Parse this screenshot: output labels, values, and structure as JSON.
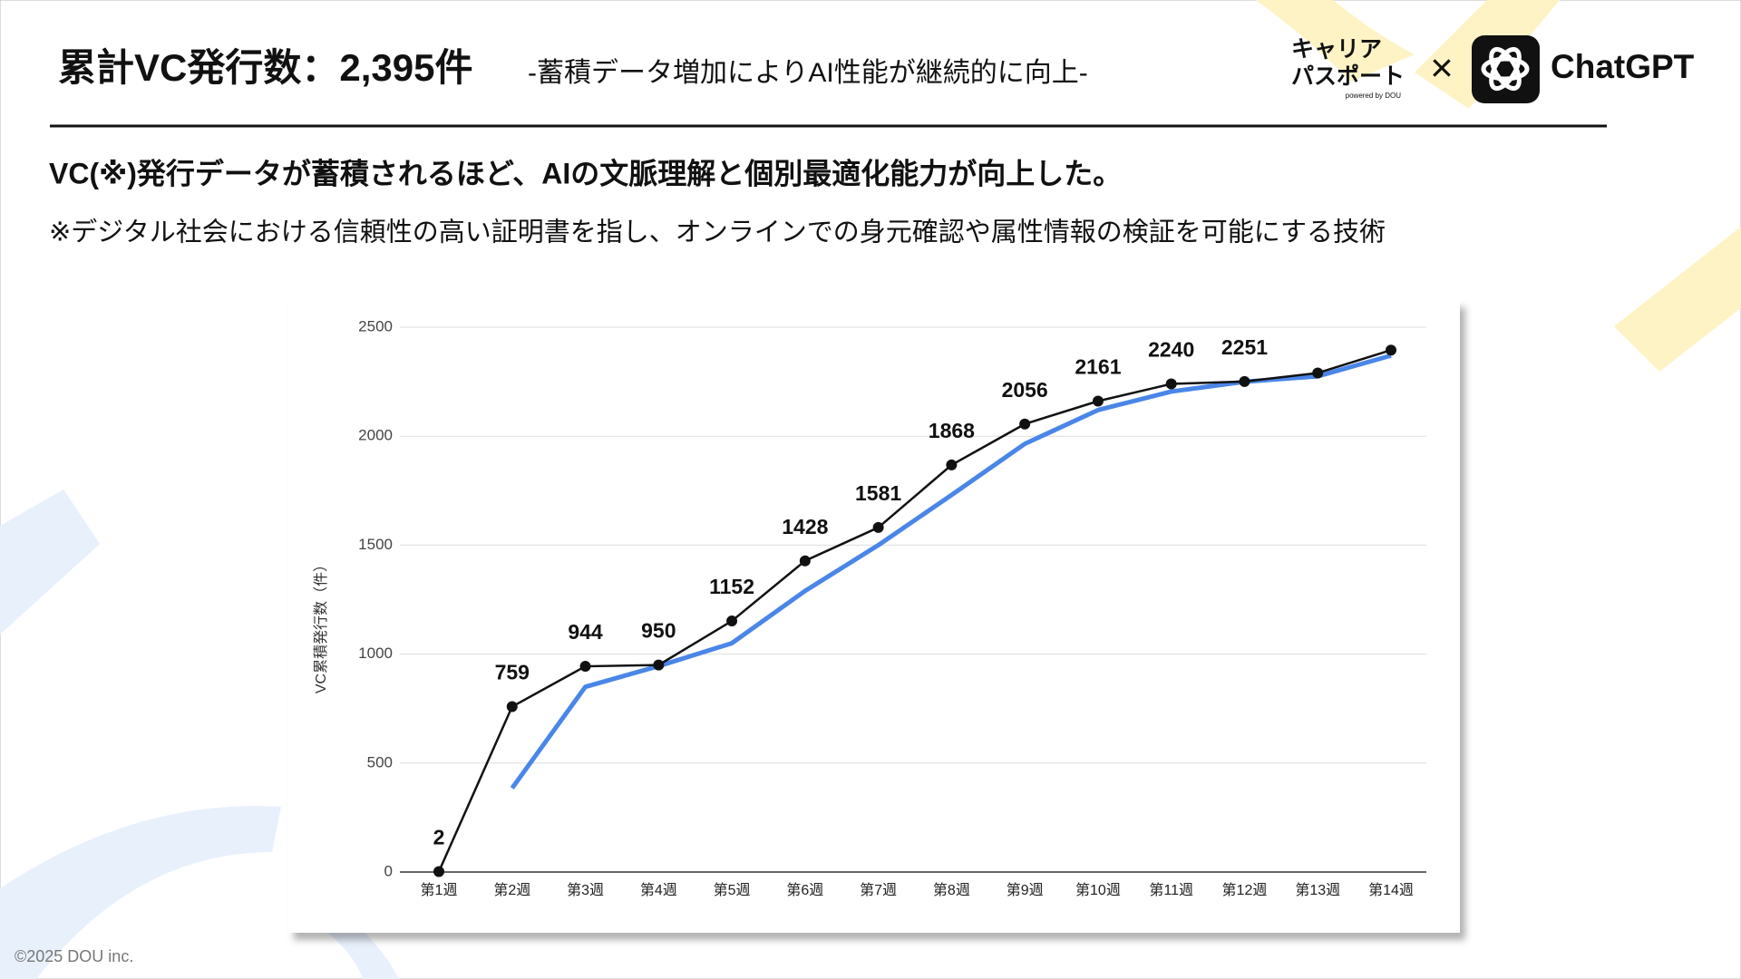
{
  "header": {
    "title": "累計VC発行数：2,395件",
    "subtitle": "-蓄積データ増加によりAI性能が継続的に向上-",
    "logo_text_1": "キャリア",
    "logo_text_2": "パスポート",
    "logo_powered": "powered by DOU",
    "cross": "×",
    "partner": "ChatGPT"
  },
  "lead": "VC(※)発行データが蓄積されるほど、AIの文脈理解と個別最適化能力が向上した。",
  "note": "※デジタル社会における信頼性の高い証明書を指し、オンラインでの身元確認や属性情報の検証を可能にする技術",
  "footer": "©2025 DOU inc.",
  "chart_data": {
    "type": "line",
    "ylabel": "VC累積発行数（件）",
    "categories": [
      "第1週",
      "第2週",
      "第3週",
      "第4週",
      "第5週",
      "第6週",
      "第7週",
      "第8週",
      "第9週",
      "第10週",
      "第11週",
      "第12週",
      "第13週",
      "第14週"
    ],
    "series": [
      {
        "color": "#111111",
        "markers": true,
        "values": [
          2,
          759,
          944,
          950,
          1152,
          1428,
          1581,
          1868,
          2056,
          2161,
          2240,
          2251,
          2290,
          2395
        ],
        "value_labels": [
          "2",
          "759",
          "944",
          "950",
          "1152",
          "1428",
          "1581",
          "1868",
          "2056",
          "2161",
          "2240",
          "2251",
          null,
          null
        ]
      },
      {
        "color": "#4a86e8",
        "markers": false,
        "values": [
          null,
          385,
          850,
          945,
          1050,
          1290,
          1500,
          1730,
          1965,
          2120,
          2205,
          2250,
          2275,
          2370
        ]
      }
    ],
    "ylim": [
      0,
      2500
    ],
    "yticks": [
      0,
      500,
      1000,
      1500,
      2000,
      2500
    ],
    "grid": true
  }
}
